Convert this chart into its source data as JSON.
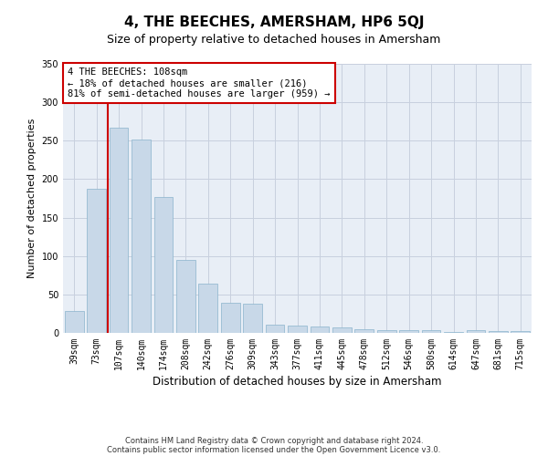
{
  "title": "4, THE BEECHES, AMERSHAM, HP6 5QJ",
  "subtitle": "Size of property relative to detached houses in Amersham",
  "xlabel": "Distribution of detached houses by size in Amersham",
  "ylabel": "Number of detached properties",
  "categories": [
    "39sqm",
    "73sqm",
    "107sqm",
    "140sqm",
    "174sqm",
    "208sqm",
    "242sqm",
    "276sqm",
    "309sqm",
    "343sqm",
    "377sqm",
    "411sqm",
    "445sqm",
    "478sqm",
    "512sqm",
    "546sqm",
    "580sqm",
    "614sqm",
    "647sqm",
    "681sqm",
    "715sqm"
  ],
  "values": [
    29,
    187,
    267,
    252,
    177,
    95,
    64,
    39,
    38,
    11,
    9,
    8,
    7,
    5,
    4,
    4,
    3,
    1,
    3,
    2,
    2
  ],
  "bar_color": "#c8d8e8",
  "bar_edge_color": "#8ab4cc",
  "highlight_line_color": "#cc0000",
  "annotation_text": "4 THE BEECHES: 108sqm\n← 18% of detached houses are smaller (216)\n81% of semi-detached houses are larger (959) →",
  "annotation_box_edge": "#cc0000",
  "ylim": [
    0,
    350
  ],
  "yticks": [
    0,
    50,
    100,
    150,
    200,
    250,
    300,
    350
  ],
  "grid_color": "#c8d0de",
  "background_color": "#e8eef6",
  "footer_line1": "Contains HM Land Registry data © Crown copyright and database right 2024.",
  "footer_line2": "Contains public sector information licensed under the Open Government Licence v3.0.",
  "title_fontsize": 11,
  "subtitle_fontsize": 9,
  "tick_fontsize": 7,
  "ylabel_fontsize": 8,
  "xlabel_fontsize": 8.5,
  "footer_fontsize": 6,
  "annotation_fontsize": 7.5
}
